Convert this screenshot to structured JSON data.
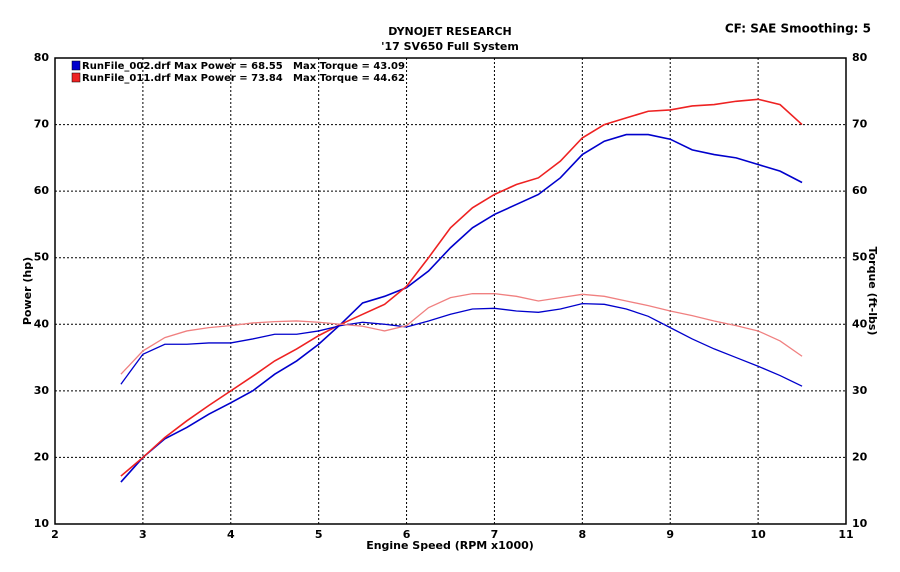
{
  "chart_data": {
    "type": "line",
    "title": "DYNOJET RESEARCH",
    "subtitle": "'17 SV650 Full System",
    "corner_note": "CF: SAE  Smoothing: 5",
    "x_label": "Engine Speed (RPM x1000)",
    "y_label": "Power (hp)",
    "y2_label": "Torque (ft-lbs)",
    "grid": true,
    "x": [
      2.75,
      3,
      3.25,
      3.5,
      3.75,
      4,
      4.25,
      4.5,
      4.75,
      5,
      5.25,
      5.5,
      5.75,
      6,
      6.25,
      6.5,
      6.75,
      7,
      7.25,
      7.5,
      7.75,
      8,
      8.25,
      8.5,
      8.75,
      9,
      9.25,
      9.5,
      9.75,
      10,
      10.25,
      10.5
    ],
    "xlim": [
      2,
      11
    ],
    "xticks": [
      2,
      3,
      4,
      5,
      6,
      7,
      8,
      9,
      10,
      11
    ],
    "ylim": [
      10,
      80
    ],
    "yticks": [
      10,
      20,
      30,
      40,
      50,
      60,
      70,
      80
    ],
    "y2lim": [
      10,
      80
    ],
    "y2ticks": [
      10,
      20,
      30,
      40,
      50,
      60,
      70,
      80
    ],
    "series": [
      {
        "name": "RunFile_002.drf Max Power = 68.55",
        "max_torque": "Max Torque = 43.09",
        "color": "#0000cc",
        "values": [
          16.3,
          20,
          22.8,
          24.5,
          26.5,
          28.2,
          30,
          32.5,
          34.5,
          37,
          40,
          43.2,
          44.2,
          45.5,
          48,
          51.5,
          54.5,
          56.5,
          58,
          59.5,
          62,
          65.5,
          67.5,
          68.5,
          68.5,
          67.8,
          66.2,
          65.5,
          65,
          64,
          63,
          61.3
        ]
      },
      {
        "name": "RunFile_011.drf Max Power = 73.84",
        "max_torque": "Max Torque = 44.62",
        "color": "#ee2222",
        "values": [
          17.2,
          20,
          23,
          25.5,
          27.8,
          30,
          32.2,
          34.5,
          36.3,
          38.3,
          40,
          41.5,
          43,
          45.7,
          50,
          54.5,
          57.5,
          59.5,
          61,
          62,
          64.5,
          68,
          70,
          71,
          72,
          72.2,
          72.8,
          73,
          73.5,
          73.8,
          73,
          70
        ]
      },
      {
        "axis": "y2",
        "color": "#0000cc",
        "values": [
          31,
          35.5,
          37,
          37,
          37.2,
          37.2,
          37.8,
          38.5,
          38.5,
          39,
          39.8,
          40.3,
          40,
          39.6,
          40.5,
          41.5,
          42.3,
          42.4,
          42,
          41.8,
          42.3,
          43.1,
          43,
          42.3,
          41.2,
          39.5,
          37.8,
          36.3,
          35,
          33.7,
          32.3,
          30.7
        ]
      },
      {
        "axis": "y2",
        "color": "#f08080",
        "values": [
          32.5,
          36,
          38,
          39,
          39.5,
          39.8,
          40.2,
          40.4,
          40.5,
          40.3,
          40,
          39.7,
          39,
          39.8,
          42.5,
          44,
          44.6,
          44.6,
          44.2,
          43.5,
          44,
          44.5,
          44.2,
          43.5,
          42.8,
          42,
          41.3,
          40.5,
          39.8,
          39,
          37.5,
          35.2
        ]
      }
    ]
  }
}
